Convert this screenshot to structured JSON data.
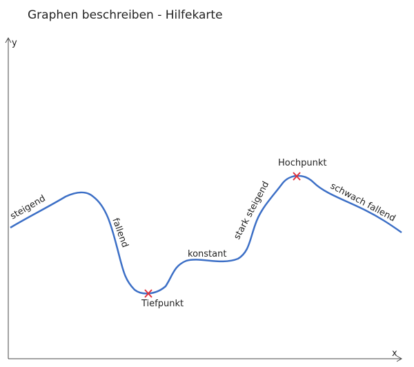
{
  "title": "Graphen beschreiben - Hilfekarte",
  "axes": {
    "x": "x",
    "y": "y"
  },
  "labels": {
    "steigend": "steigend",
    "fallend": "fallend",
    "tiefpunkt": "Tiefpunkt",
    "konstant": "konstant",
    "stark_steigend": "stark steigend",
    "hochpunkt": "Hochpunkt",
    "schwach_fallend": "schwach fallend"
  }
}
